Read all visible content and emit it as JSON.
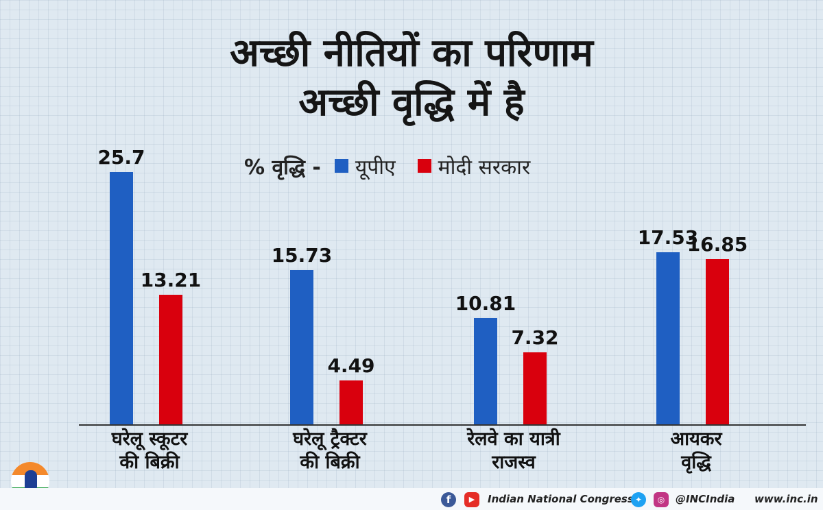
{
  "chart_data": {
    "type": "bar",
    "title": "अच्छी नीतियों का परिणाम",
    "subtitle": "अच्छी वृद्धि में है",
    "legend_prefix": "% वृद्धि -",
    "categories": [
      [
        "घरेलू स्कूटर",
        "की बिक्री"
      ],
      [
        "घरेलू ट्रैक्टर",
        "की बिक्री"
      ],
      [
        "रेलवे का यात्री",
        "राजस्व"
      ],
      [
        "आयकर",
        "वृद्धि"
      ]
    ],
    "series": [
      {
        "name": "यूपीए",
        "color": "#1f5fc2",
        "values": [
          25.7,
          15.73,
          10.81,
          17.53
        ],
        "labels": [
          "25.7",
          "15.73",
          "10.81",
          "17.53"
        ]
      },
      {
        "name": "मोदी सरकार",
        "color": "#d9000d",
        "values": [
          13.21,
          4.49,
          7.32,
          16.85
        ],
        "labels": [
          "13.21",
          "4.49",
          "7.32",
          "16.85"
        ]
      }
    ],
    "ylim": [
      0,
      26
    ],
    "xlabel": "",
    "ylabel": ""
  },
  "footer": {
    "facebook_icon": "facebook-icon",
    "youtube_icon": "youtube-icon",
    "twitter_icon": "twitter-icon",
    "instagram_icon": "instagram-icon",
    "org": "Indian National Congress",
    "handle": "@INCIndia",
    "website": "www.inc.in"
  }
}
